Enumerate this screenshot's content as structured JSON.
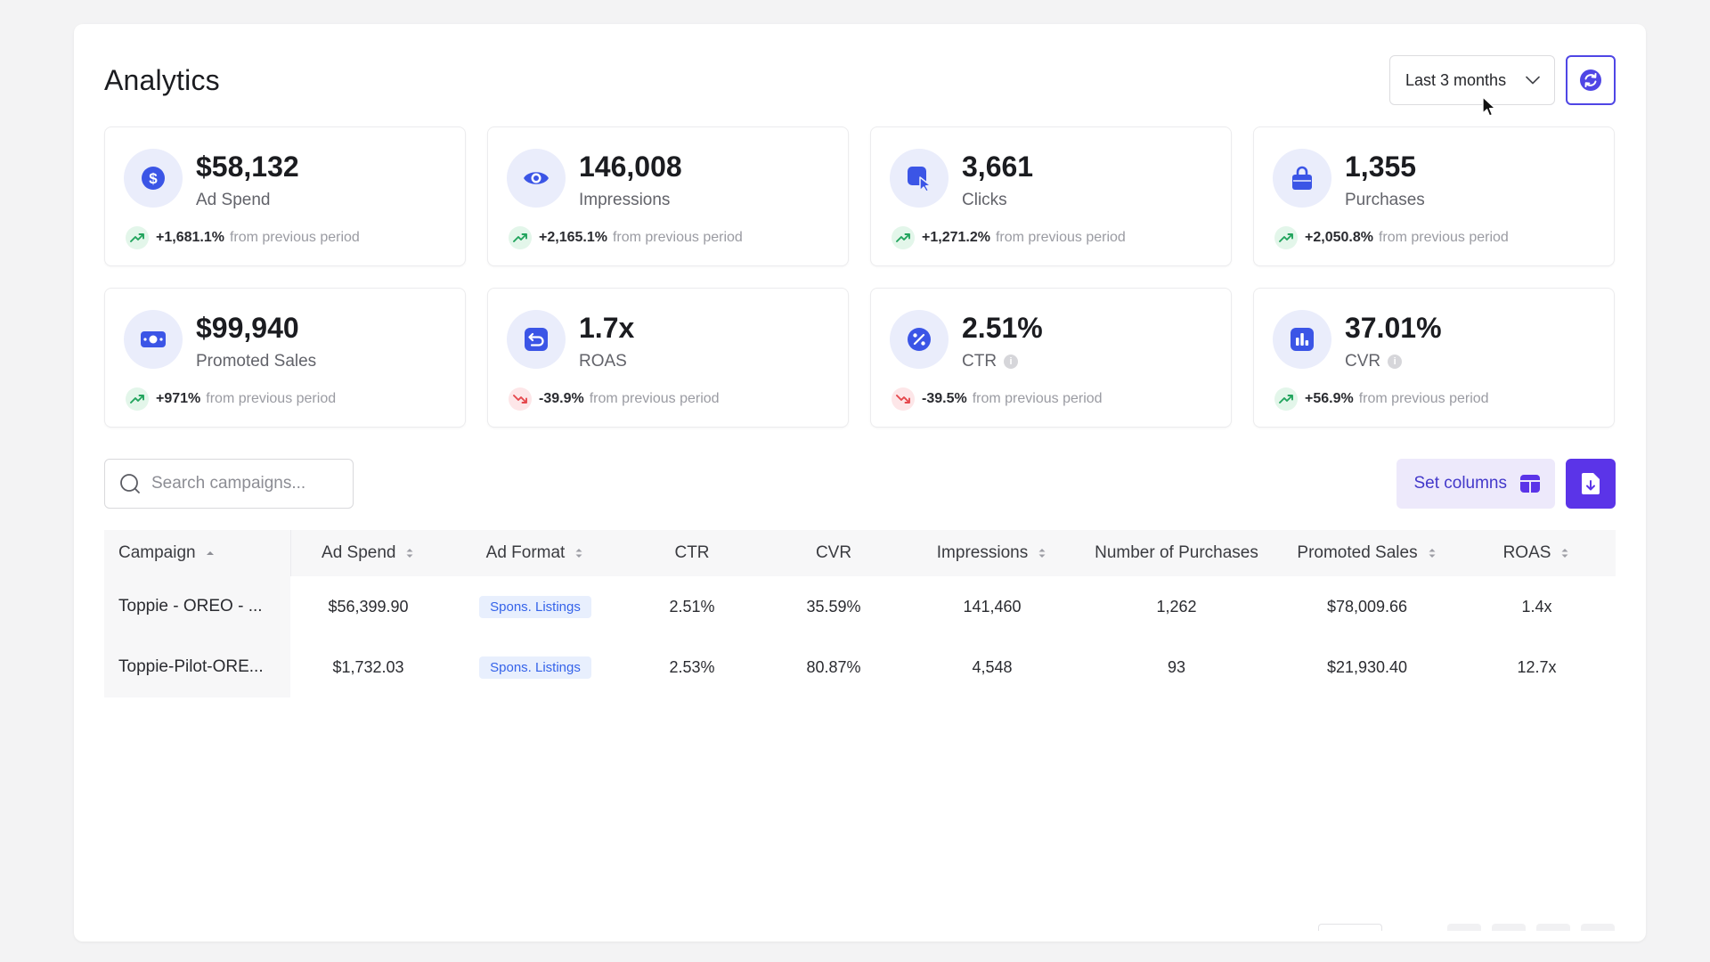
{
  "header": {
    "title": "Analytics",
    "period_select": "Last 3 months",
    "refresh_icon": "refresh-icon"
  },
  "colors": {
    "accent": "#4f46e5",
    "icon_blue": "#3b55e6",
    "icon_bg": "#eaedfb",
    "trend_up": "#22a45d",
    "trend_down": "#e5484d"
  },
  "metrics": [
    {
      "value": "$58,132",
      "label": "Ad Spend",
      "icon": "dollar-icon",
      "trend": "up",
      "change": "+1,681.1%",
      "change_text": "from previous period",
      "info": false
    },
    {
      "value": "146,008",
      "label": "Impressions",
      "icon": "eye-icon",
      "trend": "up",
      "change": "+2,165.1%",
      "change_text": "from previous period",
      "info": false
    },
    {
      "value": "3,661",
      "label": "Clicks",
      "icon": "click-icon",
      "trend": "up",
      "change": "+1,271.2%",
      "change_text": "from previous period",
      "info": false
    },
    {
      "value": "1,355",
      "label": "Purchases",
      "icon": "bag-icon",
      "trend": "up",
      "change": "+2,050.8%",
      "change_text": "from previous period",
      "info": false
    },
    {
      "value": "$99,940",
      "label": "Promoted Sales",
      "icon": "cash-icon",
      "trend": "up",
      "change": "+971%",
      "change_text": "from previous period",
      "info": false
    },
    {
      "value": "1.7x",
      "label": "ROAS",
      "icon": "return-icon",
      "trend": "down",
      "change": "-39.9%",
      "change_text": "from previous period",
      "info": false
    },
    {
      "value": "2.51%",
      "label": "CTR",
      "icon": "percent-icon",
      "trend": "down",
      "change": "-39.5%",
      "change_text": "from previous period",
      "info": true
    },
    {
      "value": "37.01%",
      "label": "CVR",
      "icon": "bar-chart-icon",
      "trend": "up",
      "change": "+56.9%",
      "change_text": "from previous period",
      "info": true
    }
  ],
  "toolbar": {
    "search_placeholder": "Search campaigns...",
    "search_value": "",
    "set_columns_label": "Set columns",
    "export_icon": "export-file-icon"
  },
  "table": {
    "columns": [
      {
        "key": "campaign",
        "label": "Campaign",
        "sort": "asc"
      },
      {
        "key": "ad_spend",
        "label": "Ad Spend",
        "sort": "both"
      },
      {
        "key": "ad_format",
        "label": "Ad Format",
        "sort": "both"
      },
      {
        "key": "ctr",
        "label": "CTR",
        "sort": "none"
      },
      {
        "key": "cvr",
        "label": "CVR",
        "sort": "none"
      },
      {
        "key": "impressions",
        "label": "Impressions",
        "sort": "both"
      },
      {
        "key": "purchases",
        "label": "Number of Purchases",
        "sort": "none"
      },
      {
        "key": "promoted_sales",
        "label": "Promoted Sales",
        "sort": "both"
      },
      {
        "key": "roas",
        "label": "ROAS",
        "sort": "both"
      }
    ],
    "rows": [
      {
        "campaign": "Toppie - OREO - ...",
        "ad_spend": "$56,399.90",
        "ad_format": "Spons. Listings",
        "ctr": "2.51%",
        "cvr": "35.59%",
        "impressions": "141,460",
        "purchases": "1,262",
        "promoted_sales": "$78,009.66",
        "roas": "1.4x"
      },
      {
        "campaign": "Toppie-Pilot-ORE...",
        "ad_spend": "$1,732.03",
        "ad_format": "Spons. Listings",
        "ctr": "2.53%",
        "cvr": "80.87%",
        "impressions": "4,548",
        "purchases": "93",
        "promoted_sales": "$21,930.40",
        "roas": "12.7x"
      }
    ]
  }
}
